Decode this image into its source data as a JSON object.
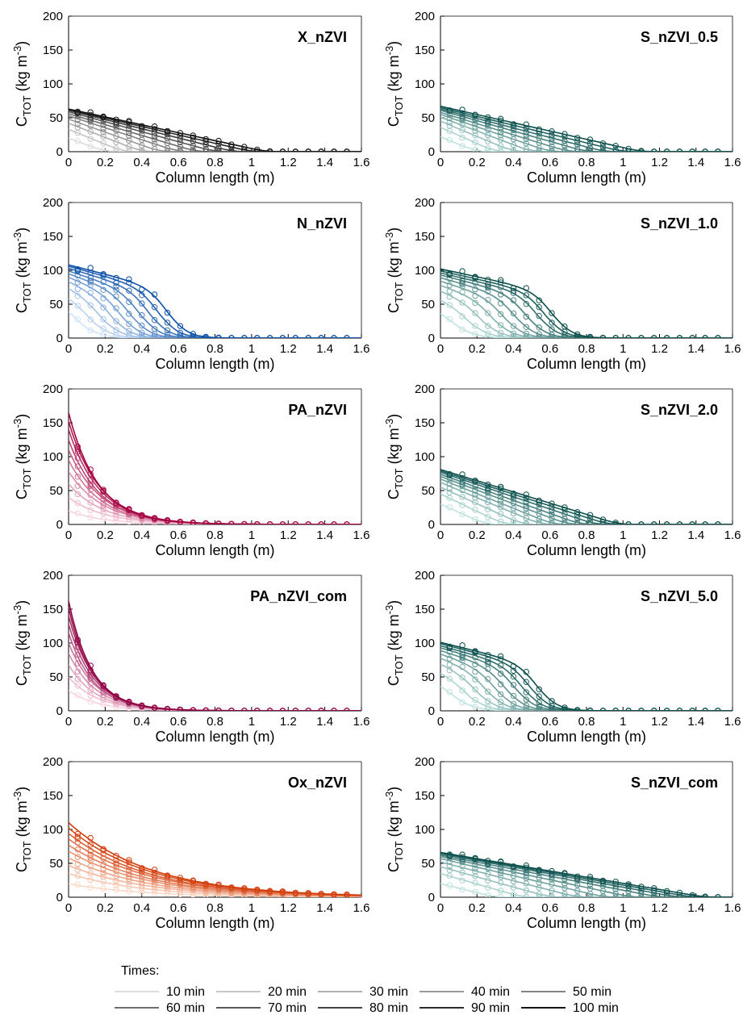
{
  "chart_data": [
    {
      "type": "line",
      "title": "X_nZVI",
      "xlabel": "Column length (m)",
      "ylabel_main": "C",
      "ylabel_sub": "TOT",
      "ylabel_unit": "(kg m",
      "ylabel_exp": "-3",
      "ylabel_close": ")",
      "xlim": [
        0,
        1.6
      ],
      "ylim": [
        0,
        200
      ],
      "xticks": [
        0,
        0.2,
        0.4,
        0.6,
        0.8,
        1,
        1.2,
        1.4,
        1.6
      ],
      "yticks": [
        0,
        50,
        100,
        150,
        200
      ],
      "ramp": [
        "#dcdcdc",
        "#111111"
      ],
      "profile": {
        "c0": [
          20,
          33,
          42,
          48,
          53,
          56,
          59,
          61,
          62,
          63
        ],
        "front": [
          0.2,
          0.3,
          0.4,
          0.5,
          0.6,
          0.7,
          0.8,
          0.9,
          1.0,
          1.08
        ],
        "shape": "linear"
      }
    },
    {
      "type": "line",
      "title": "S_nZVI_0.5",
      "xlabel": "Column length (m)",
      "ylabel_main": "C",
      "ylabel_sub": "TOT",
      "ylabel_unit": "(kg m",
      "ylabel_exp": "-3",
      "ylabel_close": ")",
      "xlim": [
        0,
        1.6
      ],
      "ylim": [
        0,
        200
      ],
      "xticks": [
        0,
        0.2,
        0.4,
        0.6,
        0.8,
        1,
        1.2,
        1.4,
        1.6
      ],
      "yticks": [
        0,
        50,
        100,
        150,
        200
      ],
      "ramp": [
        "#bfe3e1",
        "#0b4f4c"
      ],
      "profile": {
        "c0": [
          22,
          36,
          45,
          51,
          55,
          58,
          61,
          63,
          65,
          67
        ],
        "front": [
          0.2,
          0.3,
          0.4,
          0.5,
          0.6,
          0.7,
          0.8,
          0.9,
          1.0,
          1.1
        ],
        "shape": "linear"
      }
    },
    {
      "type": "line",
      "title": "N_nZVI",
      "xlabel": "Column length (m)",
      "ylabel_main": "C",
      "ylabel_sub": "TOT",
      "ylabel_unit": "(kg m",
      "ylabel_exp": "-3",
      "ylabel_close": ")",
      "xlim": [
        0,
        1.6
      ],
      "ylim": [
        0,
        200
      ],
      "xticks": [
        0,
        0.2,
        0.4,
        0.6,
        0.8,
        1,
        1.2,
        1.4,
        1.6
      ],
      "yticks": [
        0,
        50,
        100,
        150,
        200
      ],
      "ramp": [
        "#cfe3fa",
        "#0b4fa8"
      ],
      "profile": {
        "c0": [
          45,
          62,
          75,
          84,
          90,
          95,
          99,
          103,
          106,
          108
        ],
        "front": [
          0.1,
          0.15,
          0.2,
          0.25,
          0.3,
          0.35,
          0.4,
          0.45,
          0.5,
          0.55
        ],
        "shape": "front"
      }
    },
    {
      "type": "line",
      "title": "S_nZVI_1.0",
      "xlabel": "Column length (m)",
      "ylabel_main": "C",
      "ylabel_sub": "TOT",
      "ylabel_unit": "(kg m",
      "ylabel_exp": "-3",
      "ylabel_close": ")",
      "xlim": [
        0,
        1.6
      ],
      "ylim": [
        0,
        200
      ],
      "xticks": [
        0,
        0.2,
        0.4,
        0.6,
        0.8,
        1,
        1.2,
        1.4,
        1.6
      ],
      "yticks": [
        0,
        50,
        100,
        150,
        200
      ],
      "ramp": [
        "#bfe3e1",
        "#0b4f4c"
      ],
      "profile": {
        "c0": [
          40,
          58,
          70,
          78,
          84,
          89,
          93,
          96,
          99,
          102
        ],
        "front": [
          0.12,
          0.18,
          0.24,
          0.3,
          0.36,
          0.42,
          0.48,
          0.54,
          0.58,
          0.62
        ],
        "shape": "front"
      }
    },
    {
      "type": "line",
      "title": "PA_nZVI",
      "xlabel": "Column length (m)",
      "ylabel_main": "C",
      "ylabel_sub": "TOT",
      "ylabel_unit": "(kg m",
      "ylabel_exp": "-3",
      "ylabel_close": ")",
      "xlim": [
        0,
        1.6
      ],
      "ylim": [
        0,
        200
      ],
      "xticks": [
        0,
        0.2,
        0.4,
        0.6,
        0.8,
        1,
        1.2,
        1.4,
        1.6
      ],
      "yticks": [
        0,
        50,
        100,
        150,
        200
      ],
      "ramp": [
        "#f8d3e0",
        "#a3003f"
      ],
      "profile": {
        "c0": [
          20,
          40,
          60,
          78,
          95,
          110,
          125,
          140,
          152,
          165
        ],
        "decay": [
          0.2,
          0.2,
          0.19,
          0.19,
          0.18,
          0.18,
          0.17,
          0.17,
          0.17,
          0.16
        ],
        "shape": "exp"
      }
    },
    {
      "type": "line",
      "title": "S_nZVI_2.0",
      "xlabel": "Column length (m)",
      "ylabel_main": "C",
      "ylabel_sub": "TOT",
      "ylabel_unit": "(kg m",
      "ylabel_exp": "-3",
      "ylabel_close": ")",
      "xlim": [
        0,
        1.6
      ],
      "ylim": [
        0,
        200
      ],
      "xticks": [
        0,
        0.2,
        0.4,
        0.6,
        0.8,
        1,
        1.2,
        1.4,
        1.6
      ],
      "yticks": [
        0,
        50,
        100,
        150,
        200
      ],
      "ramp": [
        "#bfe3e1",
        "#0b4f4c"
      ],
      "profile": {
        "c0": [
          30,
          45,
          55,
          62,
          67,
          71,
          74,
          77,
          79,
          81
        ],
        "front": [
          0.25,
          0.35,
          0.45,
          0.55,
          0.62,
          0.7,
          0.77,
          0.85,
          0.92,
          0.98
        ],
        "shape": "linear"
      }
    },
    {
      "type": "line",
      "title": "PA_nZVI_com",
      "xlabel": "Column length (m)",
      "ylabel_main": "C",
      "ylabel_sub": "TOT",
      "ylabel_unit": "(kg m",
      "ylabel_exp": "-3",
      "ylabel_close": ")",
      "xlim": [
        0,
        1.6
      ],
      "ylim": [
        0,
        200
      ],
      "xticks": [
        0,
        0.2,
        0.4,
        0.6,
        0.8,
        1,
        1.2,
        1.4,
        1.6
      ],
      "yticks": [
        0,
        50,
        100,
        150,
        200
      ],
      "ramp": [
        "#f8d3e0",
        "#8e0043"
      ],
      "profile": {
        "c0": [
          30,
          50,
          68,
          85,
          100,
          115,
          128,
          140,
          152,
          162
        ],
        "decay": [
          0.16,
          0.16,
          0.15,
          0.15,
          0.15,
          0.14,
          0.14,
          0.14,
          0.13,
          0.13
        ],
        "shape": "exp"
      }
    },
    {
      "type": "line",
      "title": "S_nZVI_5.0",
      "xlabel": "Column length (m)",
      "ylabel_main": "C",
      "ylabel_sub": "TOT",
      "ylabel_unit": "(kg m",
      "ylabel_exp": "-3",
      "ylabel_close": ")",
      "xlim": [
        0,
        1.6
      ],
      "ylim": [
        0,
        200
      ],
      "xticks": [
        0,
        0.2,
        0.4,
        0.6,
        0.8,
        1,
        1.2,
        1.4,
        1.6
      ],
      "yticks": [
        0,
        50,
        100,
        150,
        200
      ],
      "ramp": [
        "#bfe3e1",
        "#0b4f4c"
      ],
      "profile": {
        "c0": [
          40,
          58,
          70,
          78,
          84,
          89,
          93,
          96,
          99,
          101
        ],
        "front": [
          0.12,
          0.17,
          0.22,
          0.27,
          0.32,
          0.37,
          0.42,
          0.46,
          0.5,
          0.54
        ],
        "shape": "front"
      }
    },
    {
      "type": "line",
      "title": "Ox_nZVI",
      "xlabel": "Column length (m)",
      "ylabel_main": "C",
      "ylabel_sub": "TOT",
      "ylabel_unit": "(kg m",
      "ylabel_exp": "-3",
      "ylabel_close": ")",
      "xlim": [
        0,
        1.6
      ],
      "ylim": [
        0,
        200
      ],
      "xticks": [
        0,
        0.2,
        0.4,
        0.6,
        0.8,
        1,
        1.2,
        1.4,
        1.6
      ],
      "yticks": [
        0,
        50,
        100,
        150,
        200
      ],
      "ramp": [
        "#fbd9c7",
        "#d23d0b"
      ],
      "profile": {
        "c0": [
          20,
          35,
          47,
          58,
          68,
          77,
          86,
          94,
          102,
          110
        ],
        "decay": [
          0.4,
          0.41,
          0.42,
          0.42,
          0.43,
          0.43,
          0.44,
          0.44,
          0.45,
          0.45
        ],
        "shape": "exp"
      }
    },
    {
      "type": "line",
      "title": "S_nZVI_com",
      "xlabel": "Column length (m)",
      "ylabel_main": "C",
      "ylabel_sub": "TOT",
      "ylabel_unit": "(kg m",
      "ylabel_exp": "-3",
      "ylabel_close": ")",
      "xlim": [
        0,
        1.6
      ],
      "ylim": [
        0,
        200
      ],
      "xticks": [
        0,
        0.2,
        0.4,
        0.6,
        0.8,
        1,
        1.2,
        1.4,
        1.6
      ],
      "yticks": [
        0,
        50,
        100,
        150,
        200
      ],
      "ramp": [
        "#bfe3e1",
        "#0b4f4c"
      ],
      "profile": {
        "c0": [
          20,
          35,
          45,
          52,
          57,
          60,
          62,
          64,
          65,
          66
        ],
        "front": [
          0.3,
          0.45,
          0.6,
          0.75,
          0.9,
          1.05,
          1.2,
          1.3,
          1.38,
          1.45
        ],
        "shape": "linear"
      }
    }
  ],
  "legend": {
    "title": "Times:",
    "entries": [
      "10 min",
      "20 min",
      "30 min",
      "40 min",
      "50 min",
      "60 min",
      "70 min",
      "80 min",
      "90 min",
      "100 min"
    ],
    "colors": [
      "#dddddd",
      "#c6c6c6",
      "#b0b0b0",
      "#9a9a9a",
      "#858585",
      "#6f6f6f",
      "#595959",
      "#434343",
      "#2d2d2d",
      "#151515"
    ]
  }
}
